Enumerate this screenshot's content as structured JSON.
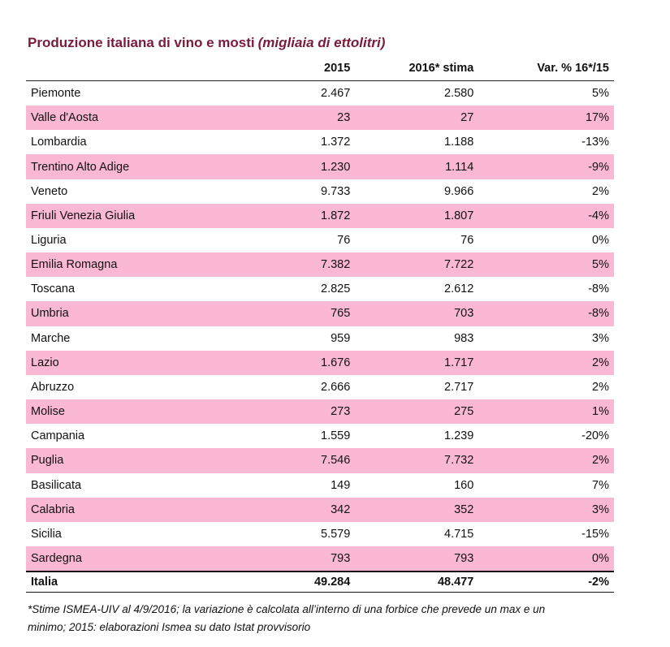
{
  "title": {
    "main": "Produzione italiana di vino e mosti",
    "unit": "(migliaia di ettolitri)"
  },
  "table": {
    "header": [
      "2015",
      "2016* stima",
      "Var. % 16*/15"
    ],
    "rows": [
      [
        "Piemonte",
        "2.467",
        "2.580",
        "5%"
      ],
      [
        "Valle d'Aosta",
        "23",
        "27",
        "17%"
      ],
      [
        "Lombardia",
        "1.372",
        "1.188",
        "-13%"
      ],
      [
        "Trentino Alto Adige",
        "1.230",
        "1.114",
        "-9%"
      ],
      [
        "Veneto",
        "9.733",
        "9.966",
        "2%"
      ],
      [
        "Friuli Venezia Giulia",
        "1.872",
        "1.807",
        "-4%"
      ],
      [
        "Liguria",
        "76",
        "76",
        "0%"
      ],
      [
        "Emilia Romagna",
        "7.382",
        "7.722",
        "5%"
      ],
      [
        "Toscana",
        "2.825",
        "2.612",
        "-8%"
      ],
      [
        "Umbria",
        "765",
        "703",
        "-8%"
      ],
      [
        "Marche",
        "959",
        "983",
        "3%"
      ],
      [
        "Lazio",
        "1.676",
        "1.717",
        "2%"
      ],
      [
        "Abruzzo",
        "2.666",
        "2.717",
        "2%"
      ],
      [
        "Molise",
        "273",
        "275",
        "1%"
      ],
      [
        "Campania",
        "1.559",
        "1.239",
        "-20%"
      ],
      [
        "Puglia",
        "7.546",
        "7.732",
        "2%"
      ],
      [
        "Basilicata",
        "149",
        "160",
        "7%"
      ],
      [
        "Calabria",
        "342",
        "352",
        "3%"
      ],
      [
        "Sicilia",
        "5.579",
        "4.715",
        "-15%"
      ],
      [
        "Sardegna",
        "793",
        "793",
        "0%"
      ]
    ],
    "total": [
      "Italia",
      "49.284",
      "48.477",
      "-2%"
    ]
  },
  "footnote": [
    "*Stime ISMEA-UIV al 4/9/2016; la variazione è calcolata all’interno di una forbice che prevede un max e un",
    "minimo; 2015: elaborazioni Ismea su dato Istat provvisorio"
  ]
}
